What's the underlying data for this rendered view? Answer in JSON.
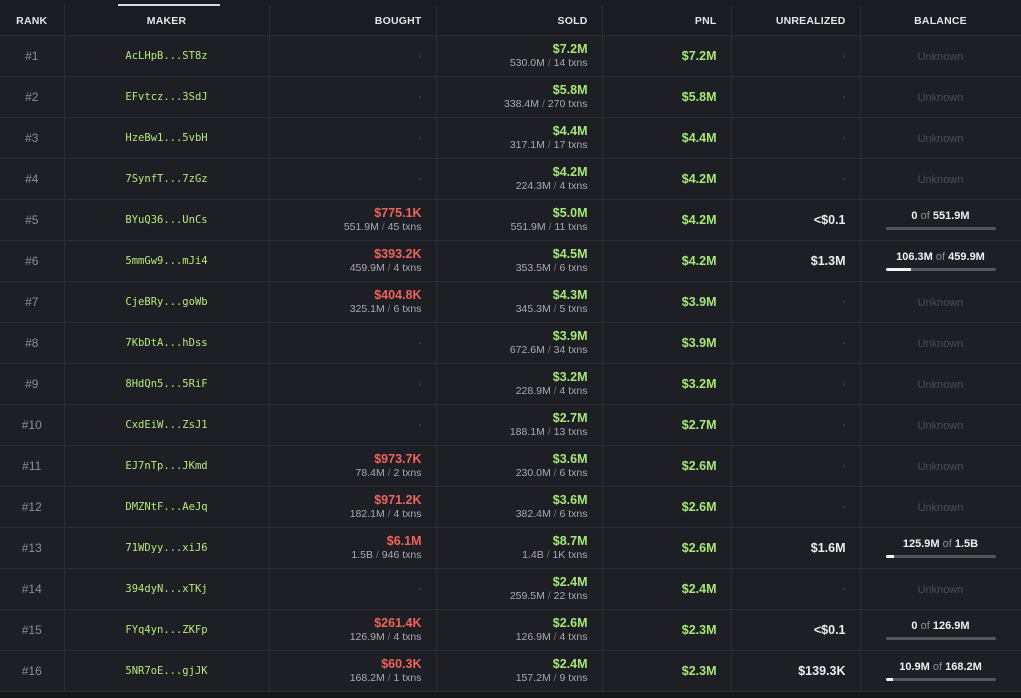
{
  "headers": {
    "rank": "RANK",
    "maker": "MAKER",
    "bought": "BOUGHT",
    "sold": "SOLD",
    "pnl": "PNL",
    "unrealized": "UNREALIZED",
    "balance": "BALANCE"
  },
  "rows": [
    {
      "rank": "#1",
      "maker": "AcLHpB...ST8z",
      "bought": null,
      "sold": {
        "usd": "$7.2M",
        "tokens": "530.0M",
        "txns": "14 txns"
      },
      "pnl": "$7.2M",
      "unrealized": null,
      "balance": {
        "unknown": "Unknown"
      }
    },
    {
      "rank": "#2",
      "maker": "EFvtcz...3SdJ",
      "bought": null,
      "sold": {
        "usd": "$5.8M",
        "tokens": "338.4M",
        "txns": "270 txns"
      },
      "pnl": "$5.8M",
      "unrealized": null,
      "balance": {
        "unknown": "Unknown"
      }
    },
    {
      "rank": "#3",
      "maker": "HzeBw1...5vbH",
      "bought": null,
      "sold": {
        "usd": "$4.4M",
        "tokens": "317.1M",
        "txns": "17 txns"
      },
      "pnl": "$4.4M",
      "unrealized": null,
      "balance": {
        "unknown": "Unknown"
      }
    },
    {
      "rank": "#4",
      "maker": "7SynfT...7zGz",
      "bought": null,
      "sold": {
        "usd": "$4.2M",
        "tokens": "224.3M",
        "txns": "4 txns"
      },
      "pnl": "$4.2M",
      "unrealized": null,
      "balance": {
        "unknown": "Unknown"
      }
    },
    {
      "rank": "#5",
      "maker": "BYuQ36...UnCs",
      "bought": {
        "usd": "$775.1K",
        "tokens": "551.9M",
        "txns": "45 txns"
      },
      "sold": {
        "usd": "$5.0M",
        "tokens": "551.9M",
        "txns": "11 txns"
      },
      "pnl": "$4.2M",
      "unrealized": "<$0.1",
      "balance": {
        "held": "0",
        "of": "of",
        "total": "551.9M",
        "fraction": 0
      }
    },
    {
      "rank": "#6",
      "maker": "5mmGw9...mJi4",
      "bought": {
        "usd": "$393.2K",
        "tokens": "459.9M",
        "txns": "4 txns"
      },
      "sold": {
        "usd": "$4.5M",
        "tokens": "353.5M",
        "txns": "6 txns"
      },
      "pnl": "$4.2M",
      "unrealized": "$1.3M",
      "balance": {
        "held": "106.3M",
        "of": "of",
        "total": "459.9M",
        "fraction": 0.23
      }
    },
    {
      "rank": "#7",
      "maker": "CjeBRy...goWb",
      "bought": {
        "usd": "$404.8K",
        "tokens": "325.1M",
        "txns": "6 txns"
      },
      "sold": {
        "usd": "$4.3M",
        "tokens": "345.3M",
        "txns": "5 txns"
      },
      "pnl": "$3.9M",
      "unrealized": null,
      "balance": {
        "unknown": "Unknown"
      }
    },
    {
      "rank": "#8",
      "maker": "7KbDtA...hDss",
      "bought": null,
      "sold": {
        "usd": "$3.9M",
        "tokens": "672.6M",
        "txns": "34 txns"
      },
      "pnl": "$3.9M",
      "unrealized": null,
      "balance": {
        "unknown": "Unknown"
      }
    },
    {
      "rank": "#9",
      "maker": "8HdQn5...5RiF",
      "bought": null,
      "sold": {
        "usd": "$3.2M",
        "tokens": "228.9M",
        "txns": "4 txns"
      },
      "pnl": "$3.2M",
      "unrealized": null,
      "balance": {
        "unknown": "Unknown"
      }
    },
    {
      "rank": "#10",
      "maker": "CxdEiW...ZsJ1",
      "bought": null,
      "sold": {
        "usd": "$2.7M",
        "tokens": "188.1M",
        "txns": "13 txns"
      },
      "pnl": "$2.7M",
      "unrealized": null,
      "balance": {
        "unknown": "Unknown"
      }
    },
    {
      "rank": "#11",
      "maker": "EJ7nTp...JKmd",
      "bought": {
        "usd": "$973.7K",
        "tokens": "78.4M",
        "txns": "2 txns"
      },
      "sold": {
        "usd": "$3.6M",
        "tokens": "230.0M",
        "txns": "6 txns"
      },
      "pnl": "$2.6M",
      "unrealized": null,
      "balance": {
        "unknown": "Unknown"
      }
    },
    {
      "rank": "#12",
      "maker": "DMZNtF...AeJq",
      "bought": {
        "usd": "$971.2K",
        "tokens": "182.1M",
        "txns": "4 txns"
      },
      "sold": {
        "usd": "$3.6M",
        "tokens": "382.4M",
        "txns": "6 txns"
      },
      "pnl": "$2.6M",
      "unrealized": null,
      "balance": {
        "unknown": "Unknown"
      }
    },
    {
      "rank": "#13",
      "maker": "71WDyy...xiJ6",
      "bought": {
        "usd": "$6.1M",
        "tokens": "1.5B",
        "txns": "946 txns"
      },
      "sold": {
        "usd": "$8.7M",
        "tokens": "1.4B",
        "txns": "1K txns"
      },
      "pnl": "$2.6M",
      "unrealized": "$1.6M",
      "balance": {
        "held": "125.9M",
        "of": "of",
        "total": "1.5B",
        "fraction": 0.08
      }
    },
    {
      "rank": "#14",
      "maker": "394dyN...xTKj",
      "bought": null,
      "sold": {
        "usd": "$2.4M",
        "tokens": "259.5M",
        "txns": "22 txns"
      },
      "pnl": "$2.4M",
      "unrealized": null,
      "balance": {
        "unknown": "Unknown"
      }
    },
    {
      "rank": "#15",
      "maker": "FYq4yn...ZKFp",
      "bought": {
        "usd": "$261.4K",
        "tokens": "126.9M",
        "txns": "4 txns"
      },
      "sold": {
        "usd": "$2.6M",
        "tokens": "126.9M",
        "txns": "4 txns"
      },
      "pnl": "$2.3M",
      "unrealized": "<$0.1",
      "balance": {
        "held": "0",
        "of": "of",
        "total": "126.9M",
        "fraction": 0
      }
    },
    {
      "rank": "#16",
      "maker": "5NR7oE...gjJK",
      "bought": {
        "usd": "$60.3K",
        "tokens": "168.2M",
        "txns": "1 txns"
      },
      "sold": {
        "usd": "$2.4M",
        "tokens": "157.2M",
        "txns": "9 txns"
      },
      "pnl": "$2.3M",
      "unrealized": "$139.3K",
      "balance": {
        "held": "10.9M",
        "of": "of",
        "total": "168.2M",
        "fraction": 0.065
      }
    }
  ],
  "dash": "-",
  "slash": "/"
}
